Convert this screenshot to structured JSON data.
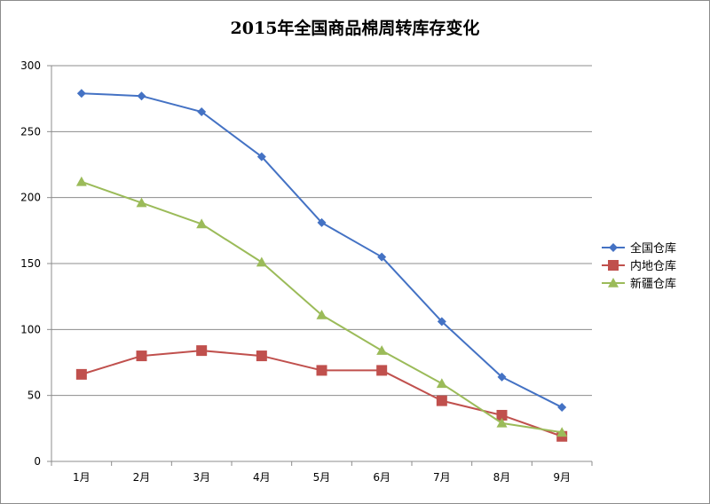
{
  "chart_data": {
    "type": "line",
    "title": "2015年全国商品棉周转库存变化",
    "xlabel": "",
    "ylabel": "",
    "categories": [
      "1月",
      "2月",
      "3月",
      "4月",
      "5月",
      "6月",
      "7月",
      "8月",
      "9月"
    ],
    "ylim": [
      0,
      300
    ],
    "yticks": [
      0,
      50,
      100,
      150,
      200,
      250,
      300
    ],
    "grid": true,
    "legend_position": "right",
    "series": [
      {
        "name": "全国仓库",
        "color": "#4472C4",
        "marker": "diamond",
        "values": [
          279,
          277,
          265,
          231,
          181,
          155,
          106,
          64,
          41
        ]
      },
      {
        "name": "内地仓库",
        "color": "#C0504D",
        "marker": "square",
        "values": [
          66,
          80,
          84,
          80,
          69,
          69,
          46,
          35,
          19
        ]
      },
      {
        "name": "新疆仓库",
        "color": "#9BBB59",
        "marker": "triangle",
        "values": [
          212,
          196,
          180,
          151,
          111,
          84,
          59,
          29,
          22
        ]
      }
    ]
  }
}
